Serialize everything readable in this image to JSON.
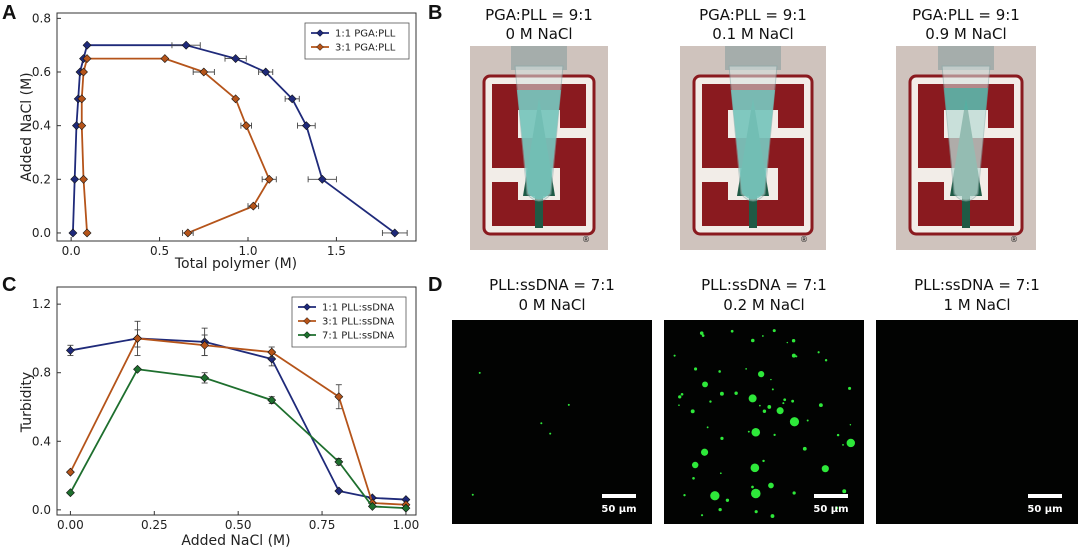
{
  "panels": {
    "A": "A",
    "B": "B",
    "C": "C",
    "D": "D"
  },
  "colors": {
    "blue": "#1f2a7a",
    "orange": "#b5541a",
    "green": "#1e6f2e",
    "photo_bg": "#cfc3bd",
    "cardinal": "#8a1a1f",
    "green_dot": "#2ee83a"
  },
  "chart_data": [
    {
      "panel": "A",
      "type": "line",
      "xlabel": "Total polymer (M)",
      "ylabel": "Added NaCl (M)",
      "xlim": [
        -0.08,
        1.95
      ],
      "ylim": [
        -0.03,
        0.82
      ],
      "xticks": [
        "0.0",
        "0.5",
        "1.0",
        "1.5"
      ],
      "xtick_values": [
        0,
        0.5,
        1.0,
        1.5
      ],
      "yticks": [
        "0.0",
        "0.2",
        "0.4",
        "0.6",
        "0.8"
      ],
      "ytick_values": [
        0,
        0.2,
        0.4,
        0.6,
        0.8
      ],
      "legend_position": "top-right",
      "grid": false,
      "series": [
        {
          "name": "1:1 PGA:PLL",
          "color": "#1f2a7a",
          "marker": "diamond",
          "points": [
            {
              "x": 0.01,
              "y": 0.0
            },
            {
              "x": 0.02,
              "y": 0.2
            },
            {
              "x": 0.03,
              "y": 0.4
            },
            {
              "x": 0.04,
              "y": 0.5
            },
            {
              "x": 0.05,
              "y": 0.6
            },
            {
              "x": 0.07,
              "y": 0.65
            },
            {
              "x": 0.09,
              "y": 0.7
            },
            {
              "x": 0.65,
              "y": 0.7
            },
            {
              "x": 0.93,
              "y": 0.65
            },
            {
              "x": 1.1,
              "y": 0.6
            },
            {
              "x": 1.25,
              "y": 0.5
            },
            {
              "x": 1.33,
              "y": 0.4
            },
            {
              "x": 1.42,
              "y": 0.2
            },
            {
              "x": 1.83,
              "y": 0.0
            }
          ],
          "xerr": [
            0,
            0,
            0,
            0,
            0,
            0,
            0,
            0.08,
            0.06,
            0.04,
            0.04,
            0.05,
            0.08,
            0.07
          ]
        },
        {
          "name": "3:1 PGA:PLL",
          "color": "#b5541a",
          "marker": "diamond",
          "points": [
            {
              "x": 0.09,
              "y": 0.0
            },
            {
              "x": 0.07,
              "y": 0.2
            },
            {
              "x": 0.06,
              "y": 0.4
            },
            {
              "x": 0.06,
              "y": 0.5
            },
            {
              "x": 0.07,
              "y": 0.6
            },
            {
              "x": 0.09,
              "y": 0.65
            },
            {
              "x": 0.53,
              "y": 0.65
            },
            {
              "x": 0.75,
              "y": 0.6
            },
            {
              "x": 0.93,
              "y": 0.5
            },
            {
              "x": 0.99,
              "y": 0.4
            },
            {
              "x": 1.12,
              "y": 0.2
            },
            {
              "x": 1.03,
              "y": 0.1
            },
            {
              "x": 0.66,
              "y": 0.0
            }
          ],
          "xerr": [
            0,
            0,
            0,
            0,
            0,
            0,
            0,
            0.06,
            0,
            0.03,
            0.04,
            0.03,
            0.03
          ]
        }
      ]
    },
    {
      "panel": "C",
      "type": "line",
      "xlabel": "Added NaCl (M)",
      "ylabel": "Turbidity",
      "xlim": [
        -0.04,
        1.03
      ],
      "ylim": [
        -0.03,
        1.3
      ],
      "xticks": [
        "0.00",
        "0.25",
        "0.50",
        "0.75",
        "1.00"
      ],
      "xtick_values": [
        0,
        0.25,
        0.5,
        0.75,
        1.0
      ],
      "yticks": [
        "0.0",
        "0.4",
        "0.8",
        "1.2"
      ],
      "ytick_values": [
        0,
        0.4,
        0.8,
        1.2
      ],
      "legend_position": "top-right",
      "grid": false,
      "series": [
        {
          "name": "1:1 PLL:ssDNA",
          "color": "#1f2a7a",
          "points": [
            {
              "x": 0.0,
              "y": 0.93
            },
            {
              "x": 0.2,
              "y": 1.0
            },
            {
              "x": 0.4,
              "y": 0.98
            },
            {
              "x": 0.6,
              "y": 0.88
            },
            {
              "x": 0.8,
              "y": 0.11
            },
            {
              "x": 0.9,
              "y": 0.07
            },
            {
              "x": 1.0,
              "y": 0.06
            }
          ],
          "yerr": [
            0.03,
            0.05,
            0.08,
            0.04,
            0,
            0,
            0
          ]
        },
        {
          "name": "3:1 PLL:ssDNA",
          "color": "#b5541a",
          "points": [
            {
              "x": 0.0,
              "y": 0.22
            },
            {
              "x": 0.2,
              "y": 1.0
            },
            {
              "x": 0.4,
              "y": 0.96
            },
            {
              "x": 0.6,
              "y": 0.92
            },
            {
              "x": 0.8,
              "y": 0.66
            },
            {
              "x": 0.9,
              "y": 0.04
            },
            {
              "x": 1.0,
              "y": 0.03
            }
          ],
          "yerr": [
            0,
            0.1,
            0.06,
            0.03,
            0.07,
            0,
            0
          ]
        },
        {
          "name": "7:1 PLL:ssDNA",
          "color": "#1e6f2e",
          "points": [
            {
              "x": 0.0,
              "y": 0.1
            },
            {
              "x": 0.2,
              "y": 0.82
            },
            {
              "x": 0.4,
              "y": 0.77
            },
            {
              "x": 0.6,
              "y": 0.64
            },
            {
              "x": 0.8,
              "y": 0.28
            },
            {
              "x": 0.9,
              "y": 0.02
            },
            {
              "x": 1.0,
              "y": 0.01
            }
          ],
          "yerr": [
            0,
            0,
            0.03,
            0.02,
            0.02,
            0,
            0
          ]
        }
      ]
    }
  ],
  "photos": [
    {
      "line1": "PGA:PLL = 9:1",
      "line2": "0 M NaCl"
    },
    {
      "line1": "PGA:PLL = 9:1",
      "line2": "0.1 M NaCl"
    },
    {
      "line1": "PGA:PLL = 9:1",
      "line2": "0.9 M NaCl"
    }
  ],
  "micrographs": [
    {
      "line1": "PLL:ssDNA = 7:1",
      "line2": "0 M NaCl",
      "scale": "50 μm"
    },
    {
      "line1": "PLL:ssDNA = 7:1",
      "line2": "0.2 M NaCl",
      "scale": "50 μm"
    },
    {
      "line1": "PLL:ssDNA = 7:1",
      "line2": "1 M NaCl",
      "scale": "50 μm"
    }
  ],
  "photo_logo_mark": "®"
}
